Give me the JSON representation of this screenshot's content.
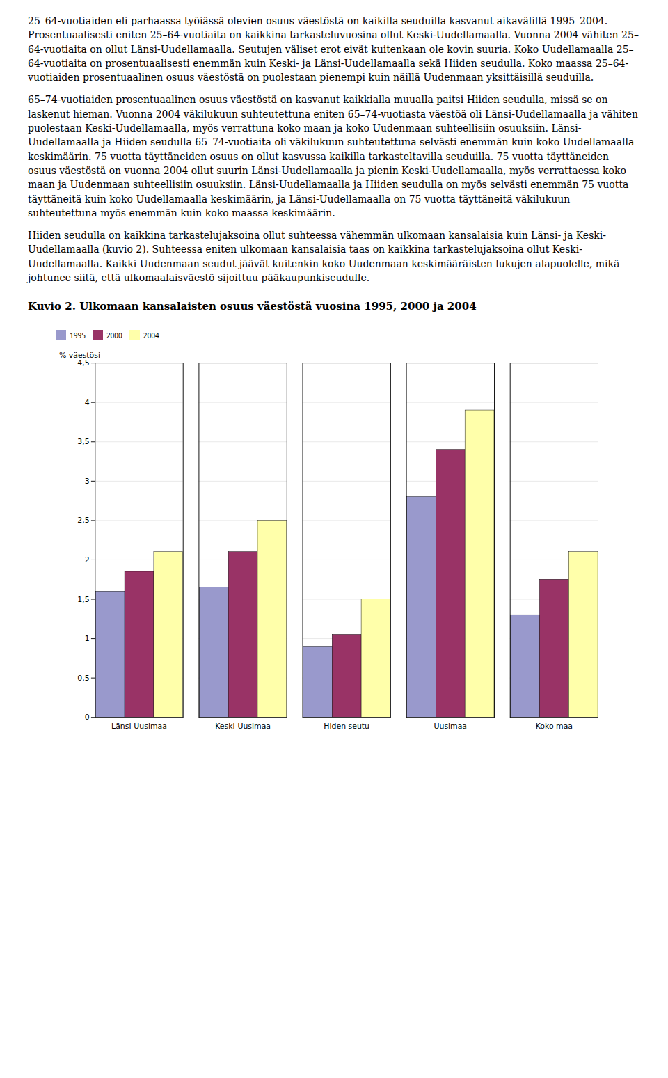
{
  "chart_data": {
    "type": "bar",
    "title": "Kuvio 2. Ulkomaan kansalaisten osuus väestöstä vuosina 1995, 2000 ja 2004",
    "annotations": [
      "25–64-vuotiaiden eli parhaassa työiässä olevien osuus väestöstä on kaikilla seuduilla kasvanut aikavälillä 1995–2004. Prosentuaalisesti eniten 25–64-vuotiaita on kaikkina tarkasteluvuosina ollut Keski-Uudellamaalla. Vuonna 2004 vähiten 25–64-vuotiaita on ollut Länsi-Uudellamaalla. Seutujen väliset erot eivät kuitenkaan ole kovin suuria. Koko Uudellamaalla 25–64-vuotiaita on prosentuaalisesti enemmän kuin Keski- ja Länsi-Uudellamaalla sekä Hiiden seudulla. Koko maassa 25–64-vuotiaiden prosentuaalinen osuus väestöstä on puolestaan pienempi kuin näillä Uudenmaan yksittäisillä seuduilla.",
      "65–74-vuotiaiden prosentuaalinen osuus väestöstä on kasvanut kaikkialla muualla paitsi Hiiden seudulla, missä se on laskenut hieman. Vuonna 2004 väkilukuun suhteutettuna eniten 65–74-vuotiasta väestöä oli Länsi-Uudellamaalla ja vähiten puolestaan Keski-Uudellamaalla, myös verrattuna koko maan ja koko Uudenmaan suhteellisiin osuuksiin. Länsi-Uudellamaalla ja Hiiden seudulla 65–74-vuotiaita oli väkilukuun suhteutettuna selvästi enemmän kuin koko Uudellamaalla keskimäärin. 75 vuotta täyttäneiden osuus on ollut kasvussa kaikilla tarkasteltavilla seuduilla. 75 vuotta täyttäneiden osuus väestöstä on vuonna 2004 ollut suurin Länsi-Uudellamaalla ja pienin Keski-Uudellamaalla, myös verrattaessa koko maan ja Uudenmaan suhteellisiin osuuksiin. Länsi-Uudellamaalla ja Hiiden seudulla on myös selvästi enemmän 75 vuotta täyttäneitä kuin koko Uudellamaalla keskimäärin, ja Länsi-Uudellamaalla on 75 vuotta täyttäneitä väkilukuun suhteutettuna myös enemmän kuin koko maassa keskimäärin.",
      "Hiiden seudulla on kaikkina tarkastelujaksoina ollut suhteessa vähemmän ulkomaan kansalaisia kuin Länsi- ja Keski-Uudellamaalla (kuvio 2). Suhteessa eniten ulkomaan kansalaisia taas on kaikkina tarkastelujaksoina ollut Keski-Uudellamaalla. Kaikki Uudenmaan seudut jäävät kuitenkin koko Uudenmaan keskimääräisten lukujen alapuolelle, mikä johtunee siitä, että ulkomaalaisväestö sijoittuu pääkaupunkiseudulle."
    ],
    "categories": [
      "Länsi-Uusimaa",
      "Keski-Uusimaa",
      "Hiden seutu",
      "Uusimaa",
      "Koko maa"
    ],
    "series": [
      {
        "name": "1995",
        "color": "#9999CC",
        "values": [
          1.6,
          1.65,
          0.9,
          2.8,
          1.3
        ]
      },
      {
        "name": "2000",
        "color": "#993366",
        "values": [
          1.85,
          2.1,
          1.05,
          3.4,
          1.75
        ]
      },
      {
        "name": "2004",
        "color": "#FFFFAA",
        "values": [
          2.1,
          2.5,
          1.5,
          3.9,
          2.1
        ]
      }
    ],
    "ylabel": "% väestösi",
    "ylim": [
      0,
      4.5
    ],
    "yticks": [
      0,
      {
        "value": 0.5,
        "label": "0,5"
      },
      1,
      {
        "value": 1.5,
        "label": "1,5"
      },
      2,
      {
        "value": 2.5,
        "label": "2,5"
      },
      3,
      {
        "value": 3.5,
        "label": "3,5"
      },
      4,
      {
        "value": 4.5,
        "label": "4,5"
      }
    ],
    "grid": true,
    "legend": "right"
  }
}
